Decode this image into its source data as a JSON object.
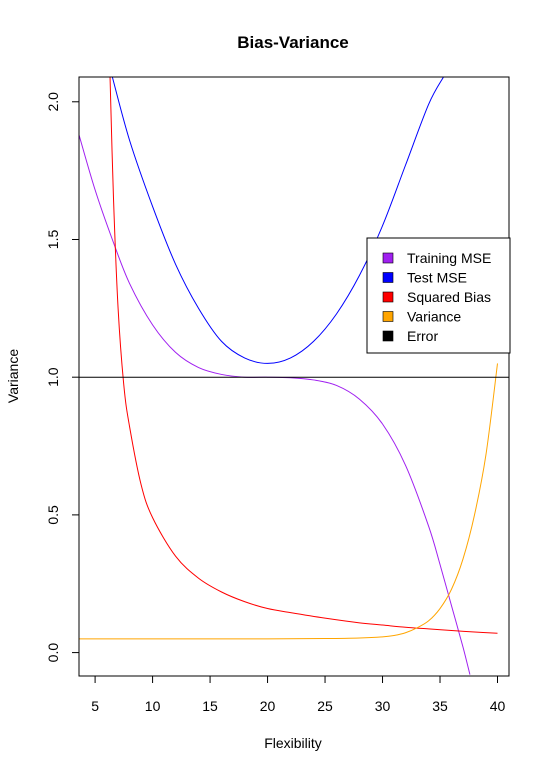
{
  "chart_data": {
    "type": "line",
    "title": "Bias-Variance",
    "xlabel": "Flexibility",
    "ylabel": "Variance",
    "xlim": [
      3.6,
      41.0
    ],
    "ylim": [
      -0.085,
      2.09
    ],
    "xticks": [
      5,
      10,
      15,
      20,
      25,
      30,
      35,
      40
    ],
    "yticks": [
      0.0,
      0.5,
      1.0,
      1.5,
      2.0
    ],
    "ytick_labels": [
      "0.0",
      "0.5",
      "1.0",
      "1.5",
      "2.0"
    ],
    "legend_position": "right",
    "legend": [
      {
        "label": "Training MSE",
        "color": "#a020f0"
      },
      {
        "label": "Test MSE",
        "color": "#0000ff"
      },
      {
        "label": "Squared Bias",
        "color": "#ff0000"
      },
      {
        "label": "Variance",
        "color": "#ffa500"
      },
      {
        "label": "Error",
        "color": "#000000"
      }
    ],
    "series": [
      {
        "name": "Training MSE",
        "color": "#a020f0",
        "x": [
          3.6,
          5,
          6.5,
          8,
          10,
          12,
          14,
          16,
          18,
          20,
          22,
          24,
          26,
          28,
          30,
          32,
          34,
          35,
          36,
          37,
          37.6
        ],
        "y": [
          1.88,
          1.68,
          1.5,
          1.34,
          1.19,
          1.09,
          1.035,
          1.01,
          1.0,
          1.0,
          0.998,
          0.99,
          0.97,
          0.92,
          0.83,
          0.68,
          0.46,
          0.32,
          0.17,
          0.02,
          -0.08
        ]
      },
      {
        "name": "Test MSE",
        "color": "#0000ff",
        "x": [
          6.5,
          8,
          10,
          12,
          14,
          16,
          18,
          20,
          22,
          24,
          26,
          28,
          30,
          32,
          34,
          35.3
        ],
        "y": [
          2.09,
          1.86,
          1.62,
          1.41,
          1.25,
          1.13,
          1.07,
          1.05,
          1.07,
          1.13,
          1.23,
          1.37,
          1.55,
          1.77,
          1.99,
          2.09
        ]
      },
      {
        "name": "Squared Bias",
        "color": "#ff0000",
        "x": [
          6.3,
          6.6,
          7,
          7.5,
          8,
          9,
          10,
          12,
          14,
          16,
          18,
          20,
          22,
          25,
          28,
          30,
          32,
          34,
          36,
          38,
          40
        ],
        "y": [
          2.09,
          1.65,
          1.25,
          0.97,
          0.82,
          0.61,
          0.49,
          0.35,
          0.27,
          0.22,
          0.185,
          0.16,
          0.145,
          0.125,
          0.108,
          0.1,
          0.092,
          0.086,
          0.08,
          0.075,
          0.07
        ]
      },
      {
        "name": "Variance",
        "color": "#ffa500",
        "x": [
          3.6,
          10,
          15,
          20,
          25,
          28,
          30,
          31,
          32,
          33,
          34,
          35,
          36,
          37,
          38,
          39,
          40
        ],
        "y": [
          0.05,
          0.05,
          0.05,
          0.05,
          0.051,
          0.053,
          0.057,
          0.062,
          0.072,
          0.09,
          0.115,
          0.16,
          0.23,
          0.34,
          0.5,
          0.72,
          1.05
        ]
      },
      {
        "name": "Error",
        "color": "#000000",
        "x": [
          3.6,
          41.0
        ],
        "y": [
          1.0,
          1.0
        ]
      }
    ]
  }
}
